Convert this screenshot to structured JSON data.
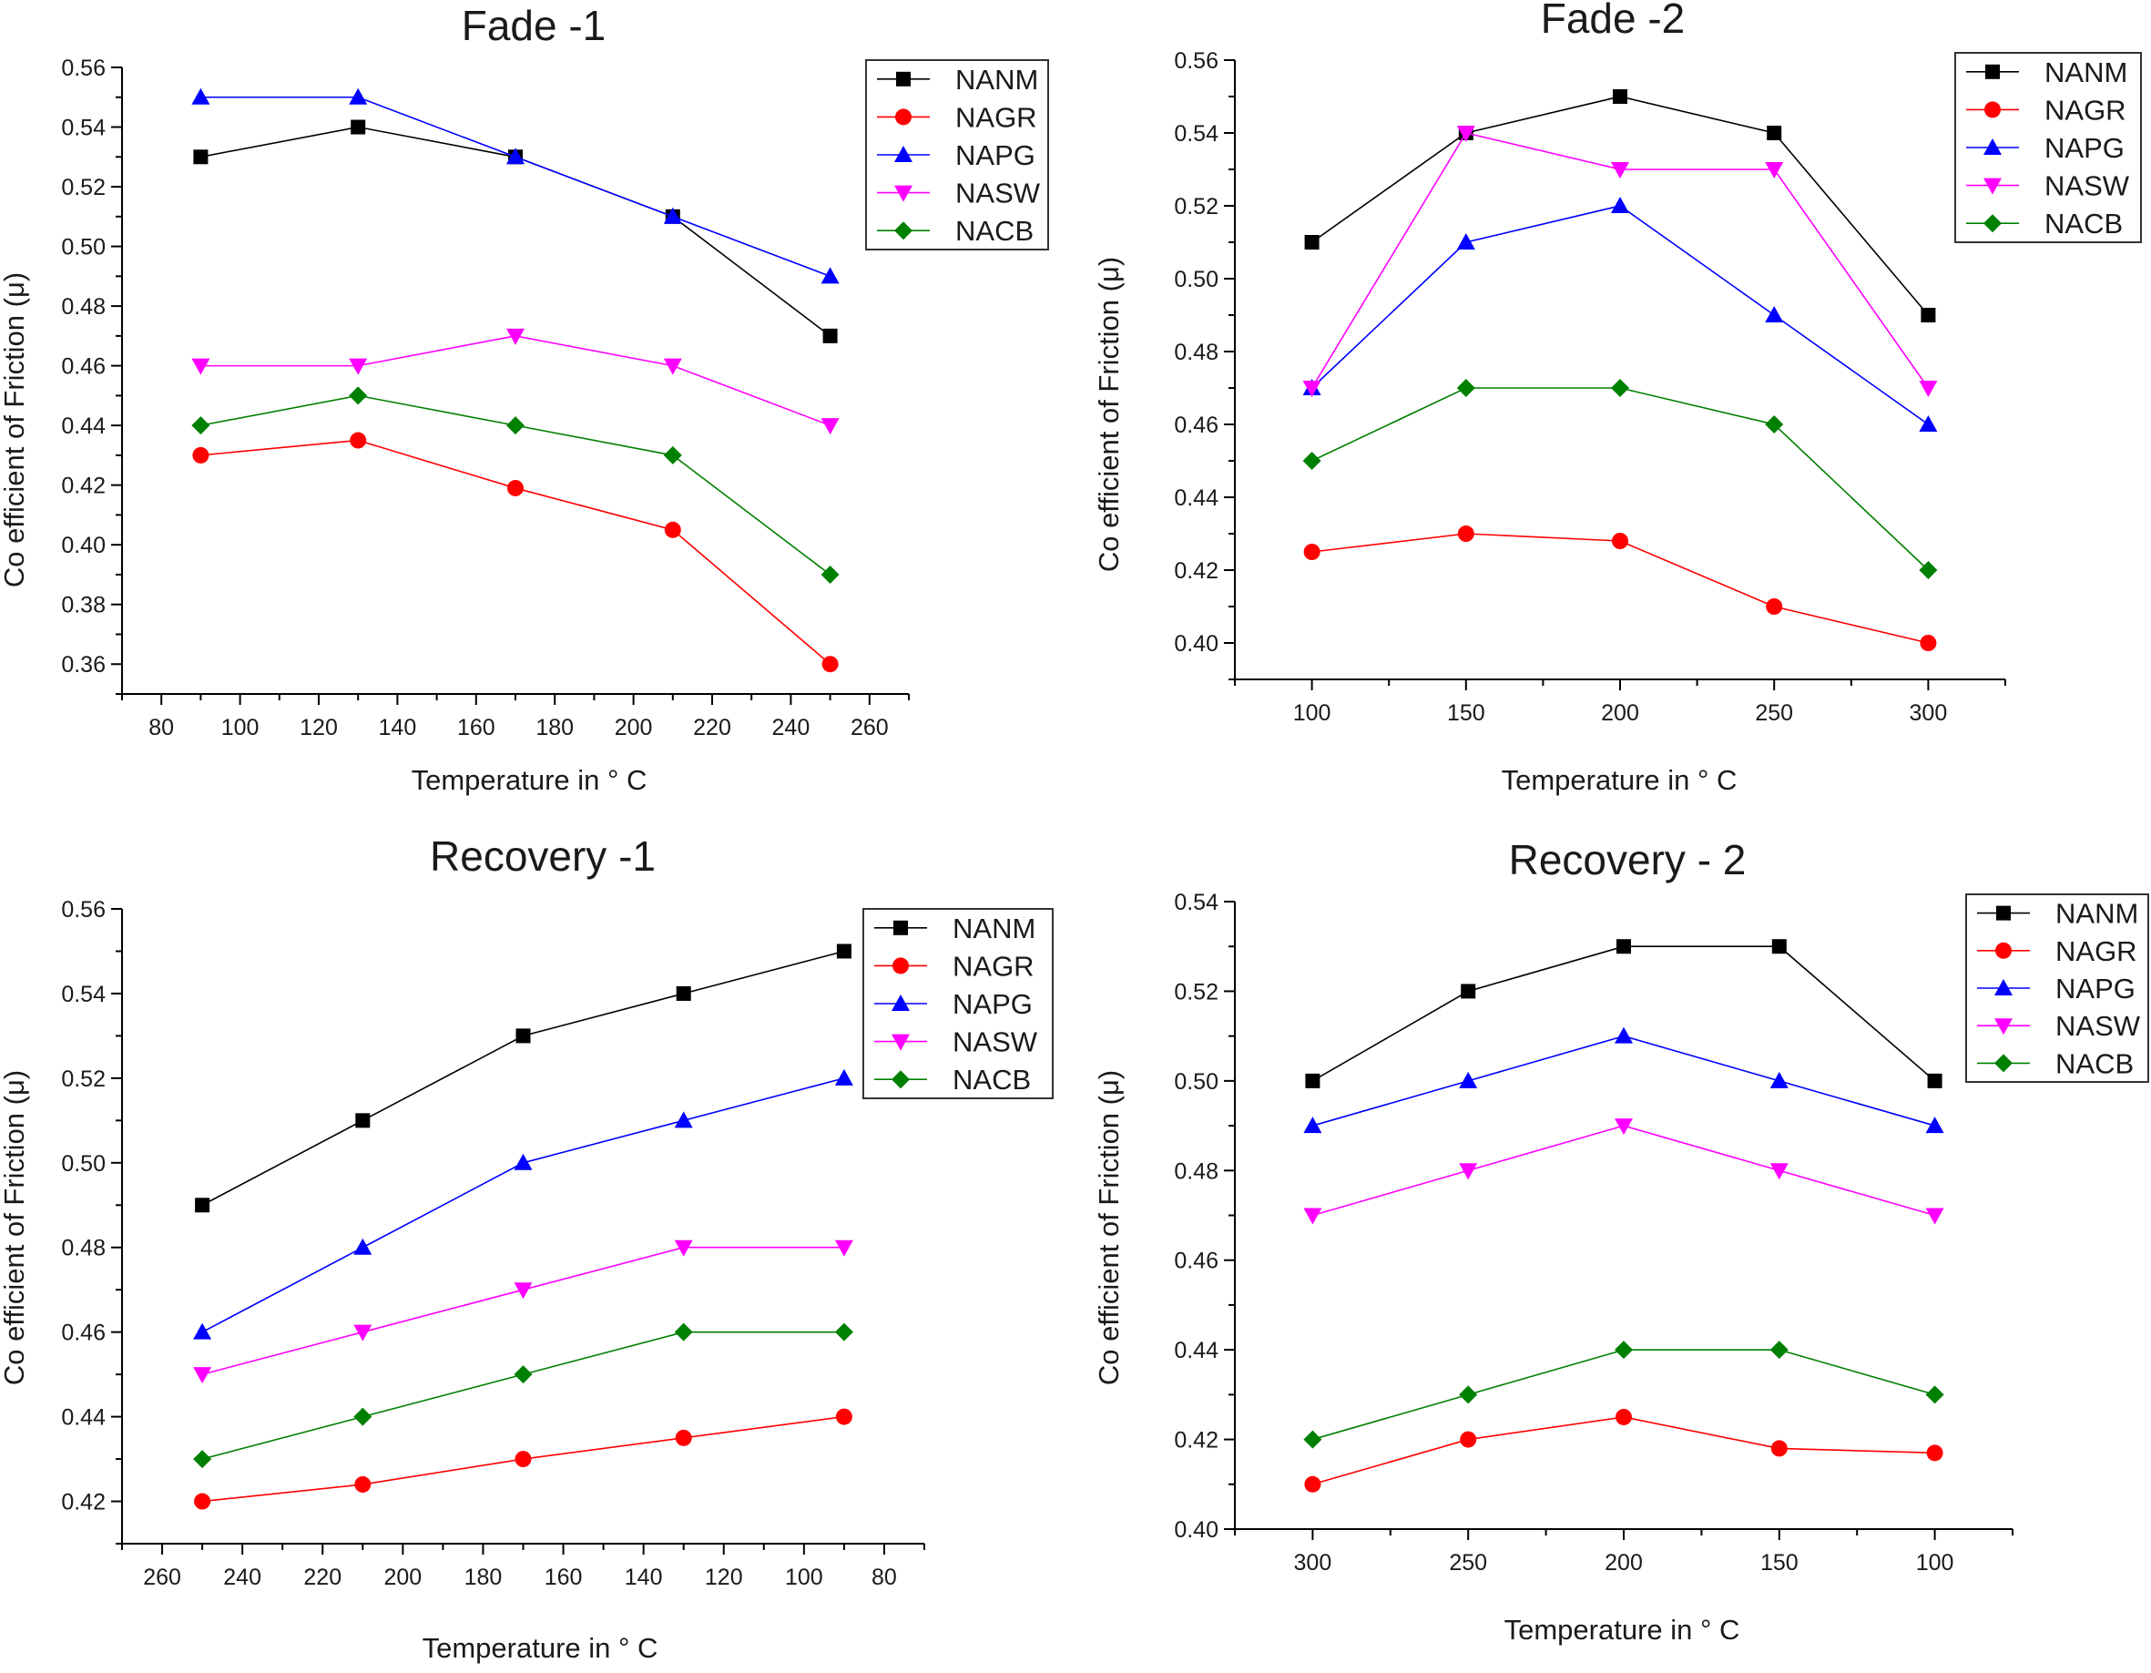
{
  "styles": {
    "NANM": {
      "color": "#000000",
      "marker": "square"
    },
    "NAGR": {
      "color": "#ff0000",
      "marker": "circle"
    },
    "NAPG": {
      "color": "#0000ff",
      "marker": "triangle-up"
    },
    "NASW": {
      "color": "#ff00ff",
      "marker": "triangle-down"
    },
    "NACB": {
      "color": "#008000",
      "marker": "diamond"
    }
  },
  "chart_data": [
    {
      "type": "line",
      "title": "Fade -1",
      "xlabel": "Temperature in ° C",
      "ylabel": "Co efficient of Friction (μ)",
      "x": [
        90,
        130,
        170,
        210,
        250
      ],
      "xlim": [
        70,
        270
      ],
      "xticks": [
        "80",
        "100",
        "120",
        "140",
        "160",
        "180",
        "200",
        "220",
        "240",
        "260"
      ],
      "ylim": [
        0.35,
        0.56
      ],
      "yticks": [
        "0.36",
        "0.38",
        "0.40",
        "0.42",
        "0.44",
        "0.46",
        "0.48",
        "0.50",
        "0.52",
        "0.54",
        "0.56"
      ],
      "legend": "top-right",
      "series": [
        {
          "name": "NANM",
          "values": [
            0.53,
            0.54,
            0.53,
            0.51,
            0.47
          ]
        },
        {
          "name": "NAGR",
          "values": [
            0.43,
            0.435,
            0.419,
            0.405,
            0.36
          ]
        },
        {
          "name": "NAPG",
          "values": [
            0.55,
            0.55,
            0.53,
            0.51,
            0.49
          ]
        },
        {
          "name": "NASW",
          "values": [
            0.46,
            0.46,
            0.47,
            0.46,
            0.44
          ]
        },
        {
          "name": "NACB",
          "values": [
            0.44,
            0.45,
            0.44,
            0.43,
            0.39
          ]
        }
      ]
    },
    {
      "type": "line",
      "title": "Fade -2",
      "xlabel": "Temperature in ° C",
      "ylabel": "Co efficient of Friction (μ)",
      "x": [
        100,
        150,
        200,
        250,
        300
      ],
      "xlim": [
        75,
        325
      ],
      "xticks": [
        "100",
        "150",
        "200",
        "250",
        "300"
      ],
      "ylim": [
        0.39,
        0.56
      ],
      "yticks": [
        "0.40",
        "0.42",
        "0.44",
        "0.46",
        "0.48",
        "0.50",
        "0.52",
        "0.54",
        "0.56"
      ],
      "legend": "top-right",
      "series": [
        {
          "name": "NANM",
          "values": [
            0.51,
            0.54,
            0.55,
            0.54,
            0.49
          ]
        },
        {
          "name": "NAGR",
          "values": [
            0.425,
            0.43,
            0.428,
            0.41,
            0.4
          ]
        },
        {
          "name": "NAPG",
          "values": [
            0.47,
            0.51,
            0.52,
            0.49,
            0.46
          ]
        },
        {
          "name": "NASW",
          "values": [
            0.47,
            0.54,
            0.53,
            0.53,
            0.47
          ]
        },
        {
          "name": "NACB",
          "values": [
            0.45,
            0.47,
            0.47,
            0.46,
            0.42
          ]
        }
      ]
    },
    {
      "type": "line",
      "title": "Recovery -1",
      "xlabel": "Temperature in ° C",
      "ylabel": "Co efficient of Friction (μ)",
      "x": [
        250,
        210,
        170,
        130,
        90
      ],
      "xlim": [
        270,
        70
      ],
      "xticks": [
        "260",
        "240",
        "220",
        "200",
        "180",
        "160",
        "140",
        "120",
        "100",
        "80"
      ],
      "ylim": [
        0.41,
        0.56
      ],
      "yticks": [
        "0.42",
        "0.44",
        "0.46",
        "0.48",
        "0.50",
        "0.52",
        "0.54",
        "0.56"
      ],
      "legend": "top-right",
      "series": [
        {
          "name": "NANM",
          "values": [
            0.49,
            0.51,
            0.53,
            0.54,
            0.55
          ]
        },
        {
          "name": "NAGR",
          "values": [
            0.42,
            0.424,
            0.43,
            0.435,
            0.44
          ]
        },
        {
          "name": "NAPG",
          "values": [
            0.46,
            0.48,
            0.5,
            0.51,
            0.52
          ]
        },
        {
          "name": "NASW",
          "values": [
            0.45,
            0.46,
            0.47,
            0.48,
            0.48
          ]
        },
        {
          "name": "NACB",
          "values": [
            0.43,
            0.44,
            0.45,
            0.46,
            0.46
          ]
        }
      ]
    },
    {
      "type": "line",
      "title": "Recovery - 2",
      "xlabel": "Temperature in ° C",
      "ylabel": "Co efficient of Friction (μ)",
      "x": [
        300,
        250,
        200,
        150,
        100
      ],
      "xlim": [
        325,
        75
      ],
      "xticks": [
        "300",
        "250",
        "200",
        "150",
        "100"
      ],
      "ylim": [
        0.4,
        0.54
      ],
      "yticks": [
        "0.40",
        "0.42",
        "0.44",
        "0.46",
        "0.48",
        "0.50",
        "0.52",
        "0.54"
      ],
      "legend": "top-right",
      "series": [
        {
          "name": "NANM",
          "values": [
            0.5,
            0.52,
            0.53,
            0.53,
            0.5
          ]
        },
        {
          "name": "NAGR",
          "values": [
            0.41,
            0.42,
            0.425,
            0.418,
            0.417
          ]
        },
        {
          "name": "NAPG",
          "values": [
            0.49,
            0.5,
            0.51,
            0.5,
            0.49
          ]
        },
        {
          "name": "NASW",
          "values": [
            0.47,
            0.48,
            0.49,
            0.48,
            0.47
          ]
        },
        {
          "name": "NACB",
          "values": [
            0.42,
            0.43,
            0.44,
            0.44,
            0.43
          ]
        }
      ]
    }
  ]
}
